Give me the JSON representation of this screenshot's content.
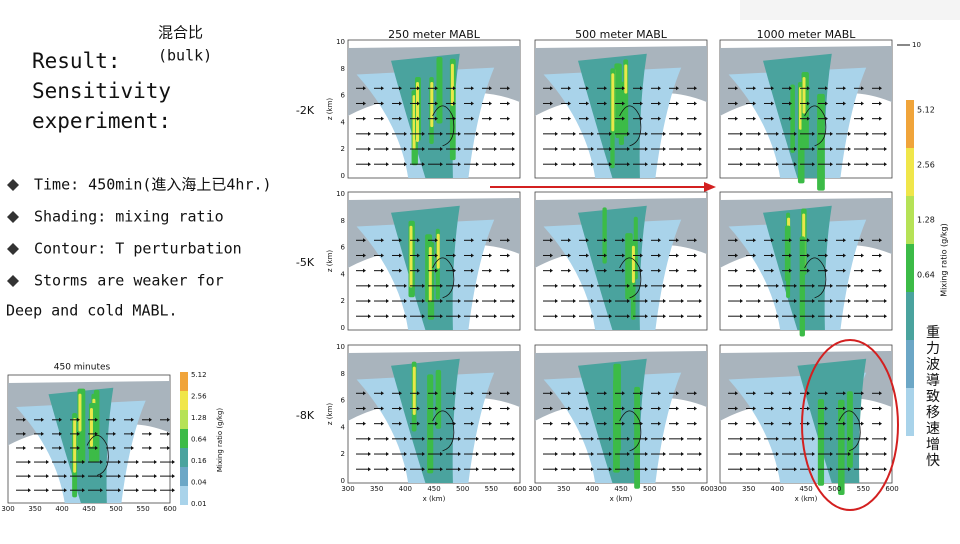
{
  "header": {
    "note": "混合比",
    "note_sub": "(bulk)",
    "title_lines": [
      "Result:",
      "Sensitivity",
      "experiment:"
    ]
  },
  "bullets": [
    "Time: 450min(進入海上已4hr.)",
    "Shading: mixing ratio",
    "Contour: T perturbation",
    "Storms are weaker for"
  ],
  "bullet_continuation": "Deep and cold MABL.",
  "figure": {
    "column_titles": [
      "250 meter MABL",
      "500 meter MABL",
      "1000 meter MABL"
    ],
    "row_labels": [
      "-2K",
      "-5K",
      "-8K"
    ],
    "y_label": "z (km)",
    "y_ticks": [
      "10",
      "8",
      "6",
      "4",
      "2",
      "0"
    ],
    "x_label": "x (km)",
    "x_ticks": [
      "300",
      "350",
      "400",
      "450",
      "500",
      "550",
      "600"
    ],
    "vector_key": "10",
    "colorbar_ticks": [
      "5.12",
      "2.56",
      "1.28",
      "0.64"
    ],
    "colorbar_label": "Mixing ratio (g/kg)",
    "annotation": "重力波導致移速增快"
  },
  "small_figure": {
    "title": "450 minutes",
    "x_ticks": [
      "300",
      "350",
      "400",
      "450",
      "500",
      "550",
      "600"
    ],
    "colorbar_ticks": [
      "5.12",
      "2.56",
      "1.28",
      "0.64",
      "0.16",
      "0.04",
      "0.01"
    ],
    "colorbar_label": "Mixing ratio (g/kg)"
  }
}
